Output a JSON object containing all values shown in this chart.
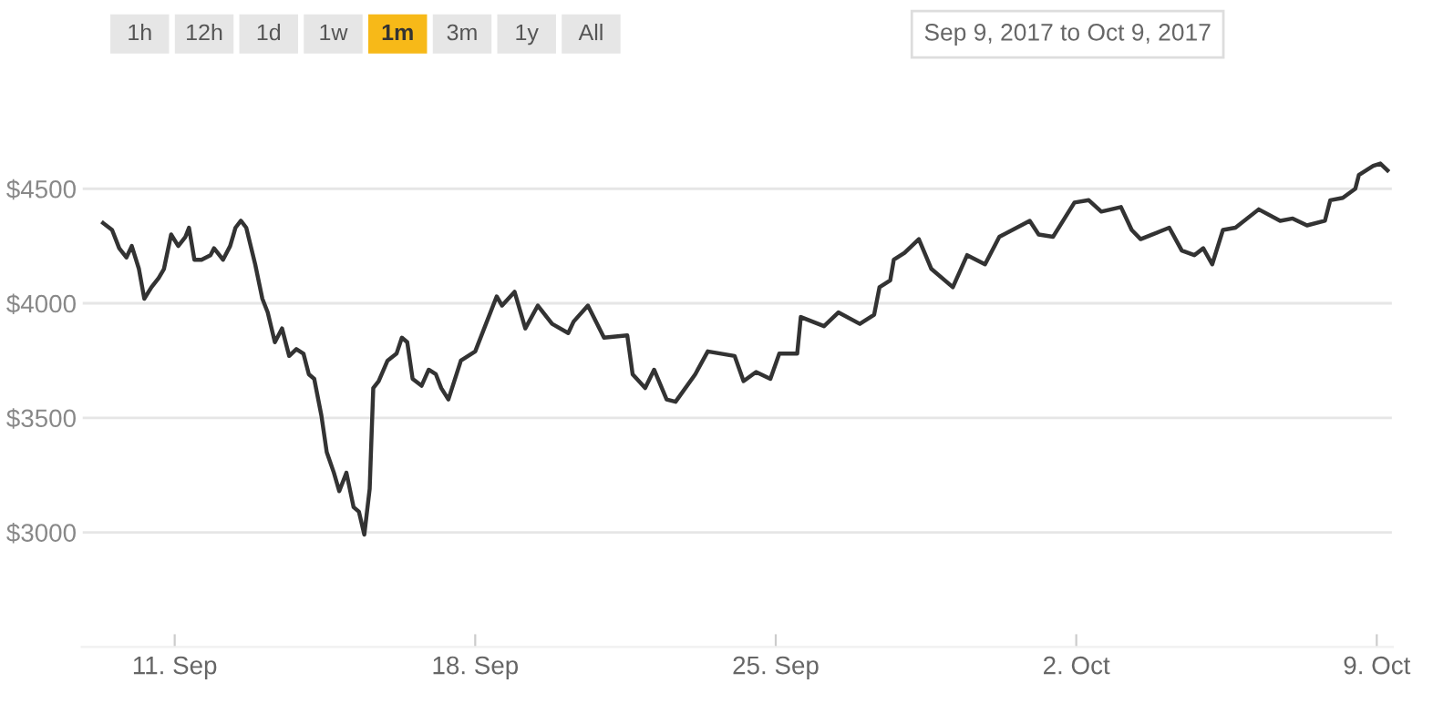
{
  "chart_data": {
    "type": "line",
    "subtitle": "Sep 9, 2017 to Oct 9, 2017",
    "annotations": [
      "1h",
      "12h",
      "1d",
      "1w",
      "1m",
      "3m",
      "1y",
      "All"
    ],
    "x": [
      "2017-09-09T08:00",
      "2017-09-09T13:00",
      "2017-09-09T17:00",
      "2017-09-09T21:00",
      "2017-09-10T00:00",
      "2017-09-10T04:00",
      "2017-09-10T07:00",
      "2017-09-10T11:00",
      "2017-09-10T15:00",
      "2017-09-10T18:00",
      "2017-09-10T22:00",
      "2017-09-11T02:00",
      "2017-09-11T06:00",
      "2017-09-11T08:00",
      "2017-09-11T11:00",
      "2017-09-11T15:00",
      "2017-09-11T20:00",
      "2017-09-11T22:00",
      "2017-09-12T03:00",
      "2017-09-12T07:00",
      "2017-09-12T10:00",
      "2017-09-12T13:00",
      "2017-09-12T16:00",
      "2017-09-12T21:00",
      "2017-09-13T01:00",
      "2017-09-13T04:00",
      "2017-09-13T08:00",
      "2017-09-13T12:00",
      "2017-09-13T16:00",
      "2017-09-13T20:00",
      "2017-09-14T00:00",
      "2017-09-14T03:00",
      "2017-09-14T06:00",
      "2017-09-14T10:00",
      "2017-09-14T13:00",
      "2017-09-14T17:00",
      "2017-09-14T20:00",
      "2017-09-15T00:00",
      "2017-09-15T04:00",
      "2017-09-15T07:00",
      "2017-09-15T10:00",
      "2017-09-15T13:00",
      "2017-09-15T15:00",
      "2017-09-15T18:00",
      "2017-09-15T23:00",
      "2017-09-16T04:00",
      "2017-09-16T07:00",
      "2017-09-16T10:00",
      "2017-09-16T13:00",
      "2017-09-16T18:00",
      "2017-09-16T22:00",
      "2017-09-17T02:00",
      "2017-09-17T05:00",
      "2017-09-17T09:00",
      "2017-09-17T16:00",
      "2017-09-18T00:00",
      "2017-09-18T07:00",
      "2017-09-18T12:00",
      "2017-09-18T15:00",
      "2017-09-18T22:00",
      "2017-09-19T04:00",
      "2017-09-19T11:00",
      "2017-09-19T19:00",
      "2017-09-20T04:00",
      "2017-09-20T07:00",
      "2017-09-20T15:00",
      "2017-09-21T00:00",
      "2017-09-21T13:00",
      "2017-09-21T16:00",
      "2017-09-21T23:00",
      "2017-09-22T04:00",
      "2017-09-22T11:00",
      "2017-09-22T16:00",
      "2017-09-23T03:00",
      "2017-09-23T10:00",
      "2017-09-24T01:00",
      "2017-09-24T06:00",
      "2017-09-24T13:00",
      "2017-09-24T21:00",
      "2017-09-25T02:00",
      "2017-09-25T12:00",
      "2017-09-25T14:00",
      "2017-09-26T03:00",
      "2017-09-26T11:00",
      "2017-09-26T23:00",
      "2017-09-27T07:00",
      "2017-09-27T10:00",
      "2017-09-27T16:00",
      "2017-09-27T18:00",
      "2017-09-28T00:00",
      "2017-09-28T08:00",
      "2017-09-28T15:00",
      "2017-09-29T03:00",
      "2017-09-29T11:00",
      "2017-09-29T21:00",
      "2017-09-30T05:00",
      "2017-09-30T22:00",
      "2017-10-01T03:00",
      "2017-10-01T11:00",
      "2017-10-01T23:00",
      "2017-10-02T07:00",
      "2017-10-02T14:00",
      "2017-10-03T01:00",
      "2017-10-03T07:00",
      "2017-10-03T12:00",
      "2017-10-04T04:00",
      "2017-10-04T11:00",
      "2017-10-04T18:00",
      "2017-10-04T23:00",
      "2017-10-05T04:00",
      "2017-10-05T10:00",
      "2017-10-05T17:00",
      "2017-10-06T06:00",
      "2017-10-06T18:00",
      "2017-10-07T01:00",
      "2017-10-07T09:00",
      "2017-10-07T19:00",
      "2017-10-07T22:00",
      "2017-10-08T05:00",
      "2017-10-08T12:00",
      "2017-10-08T14:00",
      "2017-10-08T22:00",
      "2017-10-09T02:00",
      "2017-10-09T06:00"
    ],
    "series": [
      {
        "color": "#333333",
        "values": [
          4350,
          4320,
          4240,
          4200,
          4250,
          4150,
          4020,
          4070,
          4110,
          4150,
          4300,
          4250,
          4290,
          4330,
          4190,
          4190,
          4210,
          4240,
          4190,
          4250,
          4330,
          4360,
          4330,
          4170,
          4020,
          3960,
          3830,
          3890,
          3770,
          3800,
          3780,
          3690,
          3670,
          3510,
          3350,
          3260,
          3180,
          3260,
          3110,
          3090,
          2990,
          3190,
          3630,
          3660,
          3750,
          3780,
          3850,
          3830,
          3670,
          3640,
          3710,
          3690,
          3630,
          3580,
          3750,
          3790,
          3930,
          4030,
          3990,
          4050,
          3890,
          3990,
          3910,
          3870,
          3920,
          3990,
          3850,
          3860,
          3690,
          3630,
          3710,
          3580,
          3570,
          3690,
          3790,
          3770,
          3660,
          3700,
          3670,
          3780,
          3780,
          3940,
          3900,
          3960,
          3910,
          3950,
          4070,
          4100,
          4190,
          4220,
          4280,
          4150,
          4070,
          4210,
          4170,
          4290,
          4360,
          4300,
          4290,
          4440,
          4450,
          4400,
          4420,
          4320,
          4280,
          4330,
          4230,
          4210,
          4240,
          4170,
          4320,
          4330,
          4410,
          4360,
          4370,
          4340,
          4360,
          4450,
          4460,
          4500,
          4560,
          4600,
          4610,
          4580
        ]
      }
    ],
    "xlim": [
      "2017-09-08T20:00",
      "2017-10-09T09:00"
    ],
    "xticks": [
      {
        "value": "2017-09-11",
        "label": "11. Sep"
      },
      {
        "value": "2017-09-18",
        "label": "18. Sep"
      },
      {
        "value": "2017-09-25",
        "label": "25. Sep"
      },
      {
        "value": "2017-10-02",
        "label": "2. Oct"
      },
      {
        "value": "2017-10-09",
        "label": "9. Oct"
      }
    ],
    "ylim": [
      2500,
      4900
    ],
    "yticks": [
      {
        "value": 3000,
        "label": "$3000"
      },
      {
        "value": 3500,
        "label": "$3500"
      },
      {
        "value": 4000,
        "label": "$4000"
      },
      {
        "value": 4500,
        "label": "$4500"
      }
    ],
    "grid": "y",
    "marker": "none",
    "line_style": "solid"
  }
}
